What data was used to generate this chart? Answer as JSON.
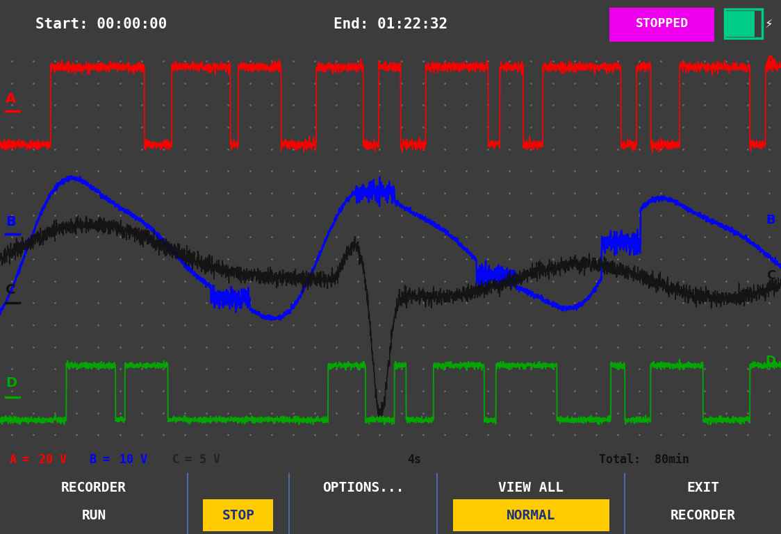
{
  "title_bar_bg": "#3c3c3c",
  "start_text": "Start: 00:00:00",
  "end_text": "End: 01:22:32",
  "stopped_bg": "#ee00ee",
  "stopped_text": "STOPPED",
  "plot_bg": "#c0c0c0",
  "grid_color": "#888888",
  "channel_A_color": "#ff0000",
  "channel_B_color": "#0000ff",
  "channel_C_color": "#111111",
  "channel_D_color": "#00aa00",
  "status_bar_bg": "#b0b0b0",
  "bottom_bar_bg": "#1a3080",
  "bottom_highlight_color": "#ffcc00",
  "bottom_text_color": "#ffffff",
  "bottom_highlight_text_color": "#1a3080",
  "battery_color": "#00cc88"
}
